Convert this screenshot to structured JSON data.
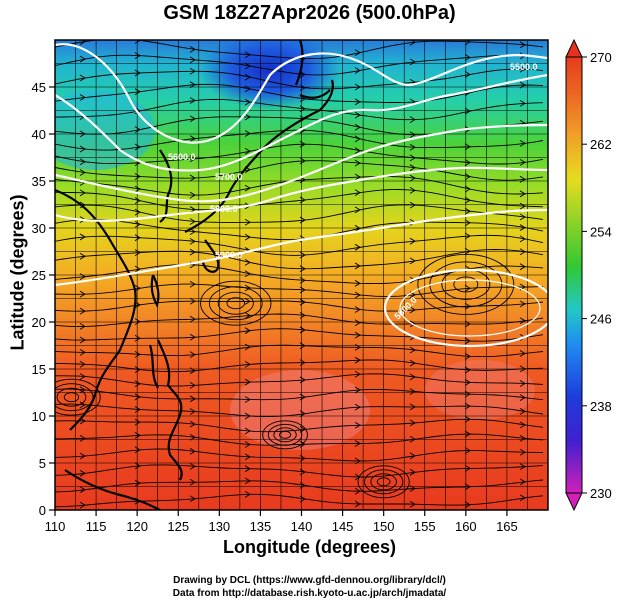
{
  "title": "GSM 18Z27Apr2026 (500.0hPa)",
  "xlabel": "Longitude (degrees)",
  "ylabel": "Latitude  (degrees)",
  "x_ticks": [
    "110",
    "115",
    "120",
    "125",
    "130",
    "135",
    "140",
    "145",
    "150",
    "155",
    "160",
    "165"
  ],
  "y_ticks": [
    "0",
    "5",
    "10",
    "15",
    "20",
    "25",
    "30",
    "35",
    "40",
    "45"
  ],
  "colorbar_ticks": [
    "230",
    "238",
    "246",
    "254",
    "262",
    "270"
  ],
  "contour_labels": [
    "5500.0",
    "5600.0",
    "5700.0",
    "5800.0",
    "5900.0",
    "5800.0"
  ],
  "credit_line1": "Drawing by DCL (https://www.gfd-dennou.org/library/dcl/)",
  "credit_line2": "Data from http://database.rish.kyoto-u.ac.jp/arch/jmadata/",
  "colors": {
    "cold": "#c000c0",
    "blue": "#1e3cdc",
    "cyan": "#22c8c8",
    "green": "#32c832",
    "yellow": "#e6dc1e",
    "orange": "#f08c28",
    "red": "#e6321e"
  },
  "chart_data": {
    "type": "heatmap",
    "variable": "temperature with streamlines and geopotential height contours",
    "x_range": [
      110,
      170
    ],
    "y_range": [
      0,
      50
    ],
    "colorbar_range": [
      230,
      270
    ],
    "colorbar_ticks": [
      230,
      238,
      246,
      254,
      262,
      270
    ],
    "contours": [
      {
        "label": "5500.0"
      },
      {
        "label": "5600.0"
      },
      {
        "label": "5700.0"
      },
      {
        "label": "5800.0"
      },
      {
        "label": "5900.0"
      },
      {
        "label": "5800.0"
      }
    ]
  }
}
